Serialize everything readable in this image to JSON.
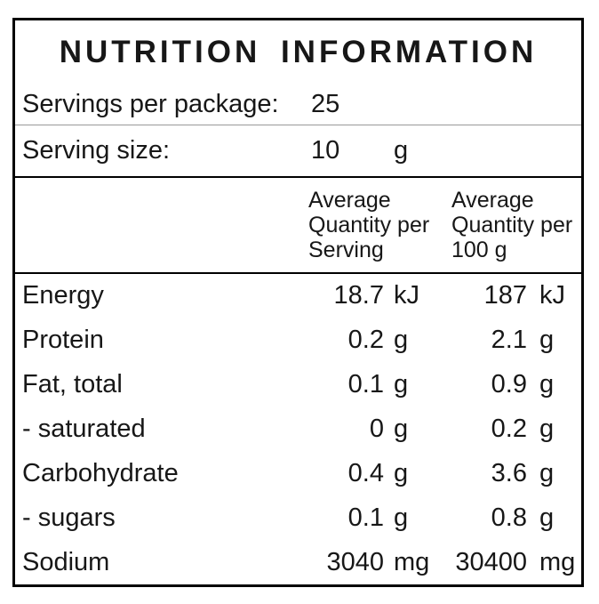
{
  "document": {
    "title": "NUTRITION INFORMATION",
    "servings_per_package_label": "Servings per package:",
    "servings_per_package_value": "25",
    "serving_size_label": "Serving size:",
    "serving_size_value": "10",
    "serving_size_unit": "g",
    "column_headers": {
      "per_serving": [
        "Average",
        "Quantity per",
        "Serving"
      ],
      "per_100g": [
        "Average",
        "Quantity per",
        "100 g"
      ]
    },
    "nutrients": [
      {
        "name": "Energy",
        "per_serving": "18.7",
        "per_serving_unit": "kJ",
        "per_100g": "187",
        "per_100g_unit": "kJ"
      },
      {
        "name": "Protein",
        "per_serving": "0.2",
        "per_serving_unit": "g",
        "per_100g": "2.1",
        "per_100g_unit": "g"
      },
      {
        "name": "Fat, total",
        "per_serving": "0.1",
        "per_serving_unit": "g",
        "per_100g": "0.9",
        "per_100g_unit": "g"
      },
      {
        "name": "- saturated",
        "per_serving": "0",
        "per_serving_unit": "g",
        "per_100g": "0.2",
        "per_100g_unit": "g"
      },
      {
        "name": "Carbohydrate",
        "per_serving": "0.4",
        "per_serving_unit": "g",
        "per_100g": "3.6",
        "per_100g_unit": "g"
      },
      {
        "name": "- sugars",
        "per_serving": "0.1",
        "per_serving_unit": "g",
        "per_100g": "0.8",
        "per_100g_unit": "g"
      },
      {
        "name": "Sodium",
        "per_serving": "3040",
        "per_serving_unit": "mg",
        "per_100g": "30400",
        "per_100g_unit": "mg"
      }
    ],
    "colors": {
      "border": "#000000",
      "text": "#171717",
      "background": "#ffffff",
      "thin_rule": "#999999"
    }
  }
}
